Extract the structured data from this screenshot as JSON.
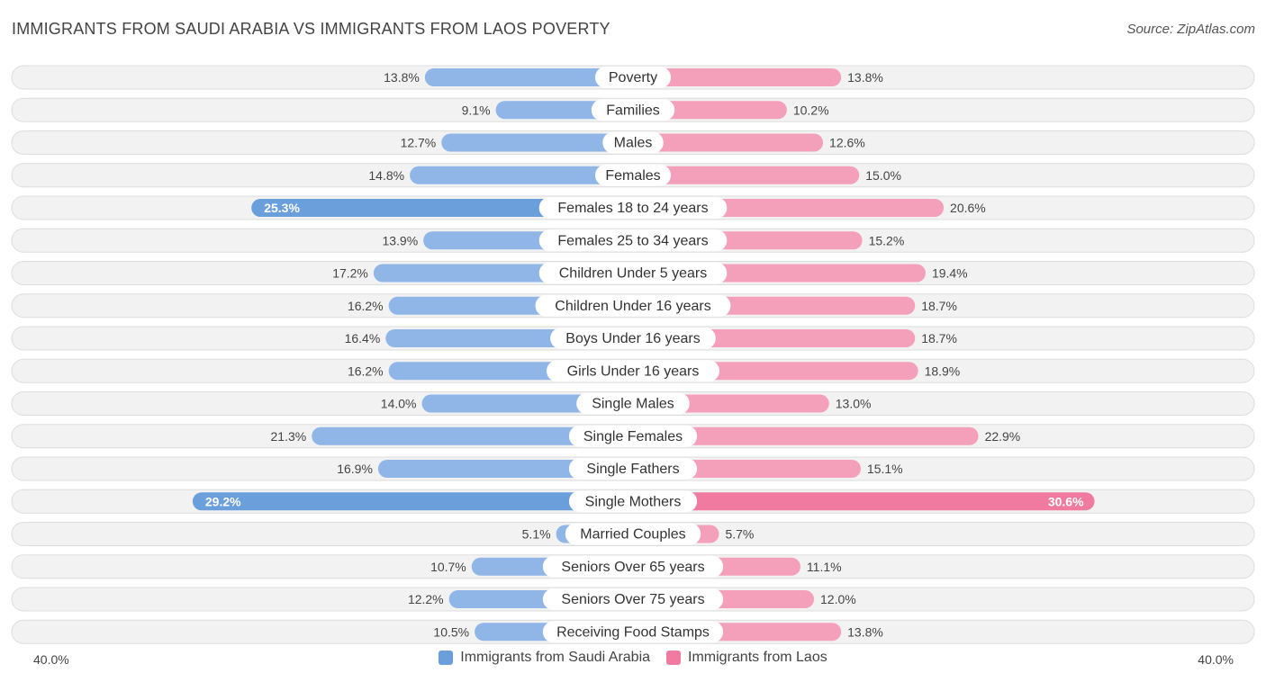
{
  "title": "IMMIGRANTS FROM SAUDI ARABIA VS IMMIGRANTS FROM LAOS POVERTY",
  "source": "Source: ZipAtlas.com",
  "axis": {
    "left_label": "40.0%",
    "right_label": "40.0%"
  },
  "colors": {
    "saudi": "#8fb6e6",
    "saudi_strong": "#6a9fdc",
    "laos": "#f4a0bb",
    "laos_strong": "#f07aa0",
    "row_bg": "#f0f0f0",
    "row_border": "#dddddd"
  },
  "legend": [
    {
      "label": "Immigrants from Saudi Arabia",
      "color": "#6a9fdc"
    },
    {
      "label": "Immigrants from Laos",
      "color": "#f07aa0"
    }
  ],
  "chart_data": {
    "type": "bar",
    "orientation": "horizontal-diverging",
    "title": "IMMIGRANTS FROM SAUDI ARABIA VS IMMIGRANTS FROM LAOS POVERTY",
    "xlim": [
      -40,
      40
    ],
    "categories": [
      "Poverty",
      "Families",
      "Males",
      "Females",
      "Females 18 to 24 years",
      "Females 25 to 34 years",
      "Children Under 5 years",
      "Children Under 16 years",
      "Boys Under 16 years",
      "Girls Under 16 years",
      "Single Males",
      "Single Females",
      "Single Fathers",
      "Single Mothers",
      "Married Couples",
      "Seniors Over 65 years",
      "Seniors Over 75 years",
      "Receiving Food Stamps"
    ],
    "series": [
      {
        "name": "Immigrants from Saudi Arabia",
        "values": [
          13.8,
          9.1,
          12.7,
          14.8,
          25.3,
          13.9,
          17.2,
          16.2,
          16.4,
          16.2,
          14.0,
          21.3,
          16.9,
          29.2,
          5.1,
          10.7,
          12.2,
          10.5
        ],
        "labels": [
          "13.8%",
          "9.1%",
          "12.7%",
          "14.8%",
          "25.3%",
          "13.9%",
          "17.2%",
          "16.2%",
          "16.4%",
          "16.2%",
          "14.0%",
          "21.3%",
          "16.9%",
          "29.2%",
          "5.1%",
          "10.7%",
          "12.2%",
          "10.5%"
        ]
      },
      {
        "name": "Immigrants from Laos",
        "values": [
          13.8,
          10.2,
          12.6,
          15.0,
          20.6,
          15.2,
          19.4,
          18.7,
          18.7,
          18.9,
          13.0,
          22.9,
          15.1,
          30.6,
          5.7,
          11.1,
          12.0,
          13.8
        ],
        "labels": [
          "13.8%",
          "10.2%",
          "12.6%",
          "15.0%",
          "20.6%",
          "15.2%",
          "19.4%",
          "18.7%",
          "18.7%",
          "18.9%",
          "13.0%",
          "22.9%",
          "15.1%",
          "30.6%",
          "5.7%",
          "11.1%",
          "12.0%",
          "13.8%"
        ]
      }
    ]
  }
}
